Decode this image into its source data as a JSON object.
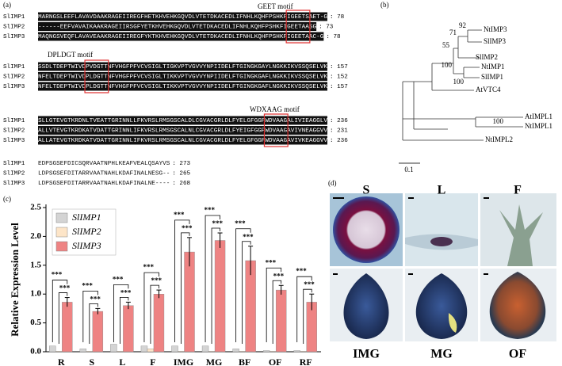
{
  "panel_labels": [
    "(a)",
    "(b)",
    "(c)",
    "(d)"
  ],
  "alignment": {
    "motifs": [
      "GEET motif",
      "DPLDGT motif",
      "WDXAAG motif"
    ],
    "blocks": [
      {
        "rows": [
          {
            "name": "SlIMP1",
            "seq": "MARNGSLEEFLAVAVDAAKRAGEIIREGFHETKHVEHKGQVDLVTETDKACEDLIFNHLKQHFPSHKFIGEETSAET-G",
            "end": ": 78"
          },
          {
            "name": "SlIMP2",
            "seq": "------EEFVAVAIKAAKRAGEIIRSGFYETKHVEHKGQVDLVTETDKACEDLIFNHLKQHFPSHKFIGEETAASG",
            "end": ": 73"
          },
          {
            "name": "SlIMP3",
            "seq": "MAQNGSVEQFLAVAVEAAKRAGEIIREGFYKTKHVEHKGQVDLVTETDKACEDLIFNHLKQHFPSHKFIGEETAAC-G",
            "end": ": 78"
          }
        ]
      },
      {
        "rows": [
          {
            "name": "SlIMP1",
            "seq": "SSDLTDEPTWIVDPVDGTTNFVHGFPFVCVSIGLTIGKVPTVGVVYNPIIDELFTGINGKGAYLNGKKIKVSSQSELVK",
            "end": ": 157"
          },
          {
            "name": "SlIMP2",
            "seq": "NFELTDEPTWIVDPLDGTTNFVHGFPFVCVSIGLTIKKVPTVGVVYNPIIDELFTGINGKGAFLNGKKIKVSSQSELVK",
            "end": ": 152"
          },
          {
            "name": "SlIMP3",
            "seq": "NFELTDEPTWIVDPLDGTTNFVHGFPFVCVSIGLTIKKVPTVGVVYNPIIDELFTGINGKGAFLNGKKIKVSSQSELVK",
            "end": ": 157"
          }
        ]
      },
      {
        "rows": [
          {
            "name": "SlIMP1",
            "seq": "SLLGTEVGTKRDNLTVEATTGRINNLLFKVRSLRMSGSCALDLCGVACGRLDLFYELGFGGPWDVAAGALIVIEAGGLV",
            "end": ": 236"
          },
          {
            "name": "SlIMP2",
            "seq": "ALLVTEVGTKRDKATVDATTGRINNLIFKVRSLRMSGSCALNLCGVACGRLDLFYEIGFGGPWDVAAGAVIVNEAGGVV",
            "end": ": 231"
          },
          {
            "name": "SlIMP3",
            "seq": "ALLATEVGTKRDKATVDATTGRINNLIFKVRSLRMSGSCALNLCGVACGRLDLFYELGFGGPWDVAAGAVIVKEAGGVV",
            "end": ": 236"
          }
        ]
      },
      {
        "rows": [
          {
            "name": "SlIMP1",
            "seq": "EDPSGSEFDICSQRVAATNPHLKEAFVEALQSAYVS",
            "end": ": 273"
          },
          {
            "name": "SlIMP2",
            "seq": "LDPSGSEFDITARRVAATNAHLKDAFINALNESG--",
            "end": ": 265"
          },
          {
            "name": "SlIMP3",
            "seq": "LDPSGSEFDITARRVAATNAHLKDAFINALNE----",
            "end": ": 268"
          }
        ]
      }
    ]
  },
  "tree": {
    "leaves": [
      "NtIMP3",
      "SlIMP3",
      "SlIMP2",
      "NtIMP1",
      "SlIMP1",
      "AtVTC4",
      "AtIMPL1",
      "NtIMPL1",
      "NtIMPL2"
    ],
    "bootstrap": [
      92,
      71,
      55,
      100,
      100,
      100
    ],
    "scale": "0.1"
  },
  "chart_data": {
    "type": "bar",
    "ylabel": "Relative Expression Level",
    "categories": [
      "R",
      "S",
      "L",
      "F",
      "IMG",
      "MG",
      "BF",
      "OF",
      "RF"
    ],
    "series": [
      {
        "name": "SlIMP1",
        "color": "#d4d4d4",
        "values": [
          0.1,
          0.05,
          0.13,
          0.1,
          0.1,
          0.1,
          0.05,
          0.02,
          0.02
        ]
      },
      {
        "name": "SlIMP2",
        "color": "#fde5c8",
        "values": [
          0.01,
          0.01,
          0.01,
          0.05,
          0.01,
          0.01,
          0.01,
          0.01,
          0.01
        ]
      },
      {
        "name": "SlIMP3",
        "color": "#ee8383",
        "values": [
          0.86,
          0.7,
          0.8,
          1.0,
          1.73,
          1.93,
          1.58,
          1.07,
          0.86
        ],
        "errors": [
          0.08,
          0.05,
          0.06,
          0.07,
          0.25,
          0.13,
          0.25,
          0.08,
          0.14
        ]
      }
    ],
    "significance": [
      [
        "***",
        "***"
      ],
      [
        "***",
        "***"
      ],
      [
        "***",
        "***"
      ],
      [
        "***",
        "***"
      ],
      [
        "***",
        "***"
      ],
      [
        "***",
        "***"
      ],
      [
        "***",
        "***"
      ],
      [
        "***",
        "***"
      ],
      [
        "***",
        "***"
      ]
    ],
    "ylim": [
      0,
      2.5
    ],
    "yticks": [
      {
        "value": 0,
        "label": "0.0"
      },
      0.5,
      {
        "value": 1,
        "label": "1.0"
      },
      1.5,
      {
        "value": 2,
        "label": "2.0"
      },
      2.5
    ],
    "legend": "upper left"
  },
  "photos": {
    "labels": [
      "S",
      "L",
      "F",
      "IMG",
      "MG",
      "OF"
    ]
  }
}
